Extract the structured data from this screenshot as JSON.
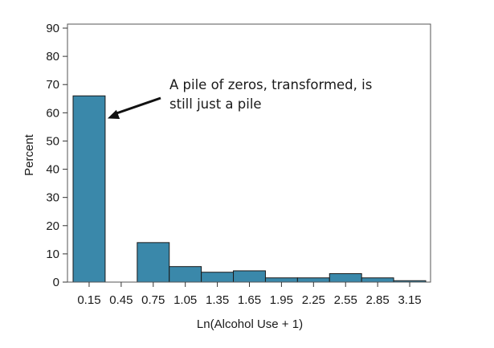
{
  "chart_data": {
    "type": "bar",
    "title": "",
    "xlabel": "Ln(Alcohol Use + 1)",
    "ylabel": "Percent",
    "ylim": [
      0,
      92
    ],
    "yticks": [
      0,
      10,
      20,
      30,
      40,
      50,
      60,
      70,
      80,
      90
    ],
    "grid": false,
    "legend": "none",
    "bar_color": "#3a88aa",
    "bar_edge_color": "#1a1a1a",
    "bin_width": 0.3,
    "categories": [
      "0.15",
      "0.45",
      "0.75",
      "1.05",
      "1.35",
      "1.65",
      "1.95",
      "2.25",
      "2.55",
      "2.85",
      "3.15"
    ],
    "x": [
      0.15,
      0.45,
      0.75,
      1.05,
      1.35,
      1.65,
      1.95,
      2.25,
      2.55,
      2.85,
      3.15
    ],
    "values": [
      66,
      0,
      14,
      5.5,
      3.5,
      4,
      1.5,
      1.5,
      3,
      1.5,
      0.5
    ],
    "annotations": [
      {
        "lines": [
          "A pile of zeros, transformed, is",
          "still just a pile"
        ],
        "points_to": {
          "x": 0.15,
          "y": 58
        }
      }
    ]
  }
}
